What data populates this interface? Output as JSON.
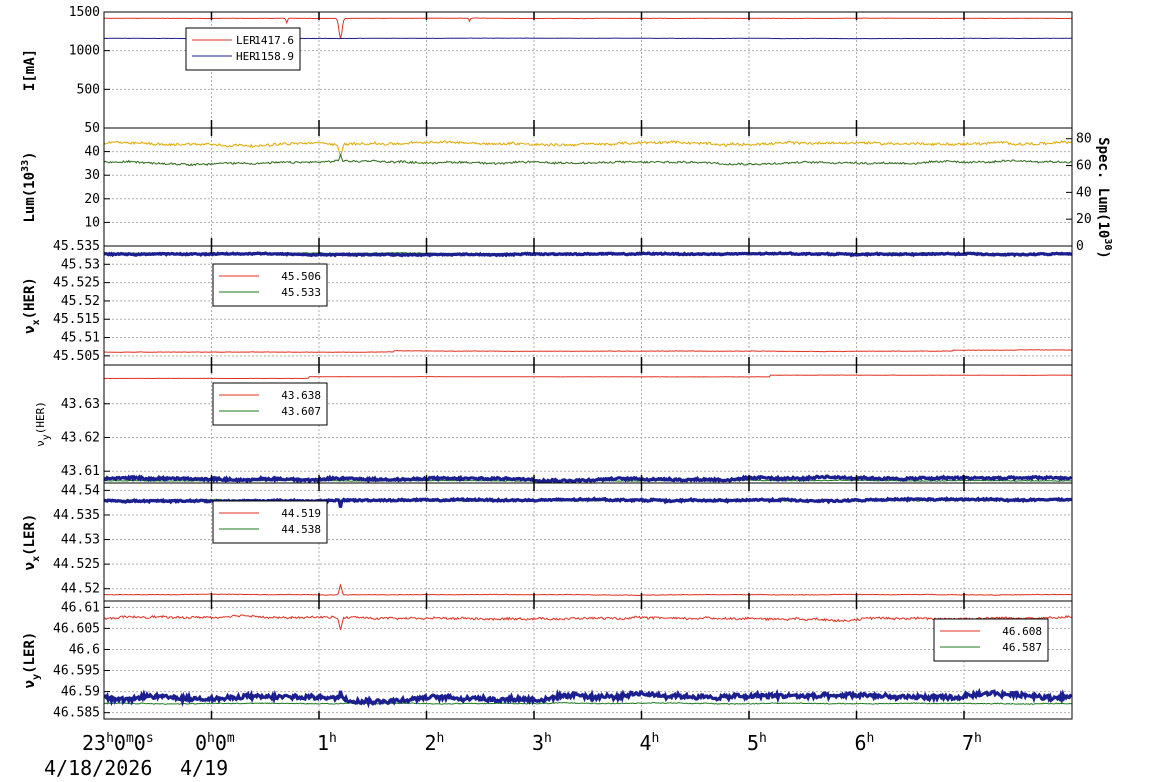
{
  "colors": {
    "red": "#e03020",
    "navy": "#1b1f8f",
    "green": "#1f7a1f",
    "gold": "#e0a800",
    "darkgreen": "#2e6b1a",
    "grid": "#b0b0b0"
  },
  "x_axis": {
    "ticks": [
      {
        "main": "23",
        "parts": [
          {
            "t": "h",
            "sup": true
          },
          {
            "t": "0",
            "sup": false
          },
          {
            "t": "m",
            "sup": true
          },
          {
            "t": "0",
            "sup": false
          },
          {
            "t": "s",
            "sup": true
          }
        ],
        "hour": -1
      },
      {
        "main": "0",
        "parts": [
          {
            "t": "h",
            "sup": true
          },
          {
            "t": "0",
            "sup": false
          },
          {
            "t": "m",
            "sup": true
          }
        ],
        "hour": 0
      },
      {
        "main": "1",
        "parts": [
          {
            "t": "h",
            "sup": true
          }
        ],
        "hour": 1
      },
      {
        "main": "2",
        "parts": [
          {
            "t": "h",
            "sup": true
          }
        ],
        "hour": 2
      },
      {
        "main": "3",
        "parts": [
          {
            "t": "h",
            "sup": true
          }
        ],
        "hour": 3
      },
      {
        "main": "4",
        "parts": [
          {
            "t": "h",
            "sup": true
          }
        ],
        "hour": 4
      },
      {
        "main": "5",
        "parts": [
          {
            "t": "h",
            "sup": true
          }
        ],
        "hour": 5
      },
      {
        "main": "6",
        "parts": [
          {
            "t": "h",
            "sup": true
          }
        ],
        "hour": 6
      },
      {
        "main": "7",
        "parts": [
          {
            "t": "h",
            "sup": true
          }
        ],
        "hour": 7
      }
    ],
    "date_left": "4/18/2026",
    "date_right": "4/19"
  },
  "chart_data": [
    {
      "type": "line",
      "ylabel": "I[mA]",
      "ylim": [
        0,
        1500
      ],
      "yticks": [
        {
          "v": 1500,
          "label": "1500"
        },
        {
          "v": 1000,
          "label": "1000"
        },
        {
          "v": 500,
          "label": "500"
        }
      ],
      "grid": true,
      "legend": {
        "placement": "top-left"
      },
      "series": [
        {
          "name": "LER",
          "value_label": "1417.6",
          "color": "red",
          "base": 1417.6,
          "noise": 3,
          "dips": [
            {
              "at": 1.2,
              "depth": 260,
              "w": 0.02
            },
            {
              "at": 0.7,
              "depth": 60,
              "w": 0.01
            },
            {
              "at": 2.4,
              "depth": 40,
              "w": 0.008
            }
          ]
        },
        {
          "name": "HER",
          "value_label": "1158.9",
          "color": "navy",
          "base": 1158.9,
          "noise": 3,
          "dips": []
        }
      ]
    },
    {
      "type": "line",
      "ylabel": "Lum(10",
      "ylabel_sup": "33",
      "ylabel_end": ")",
      "ylim": [
        0,
        50
      ],
      "yticks": [
        {
          "v": 50,
          "label": "50"
        },
        {
          "v": 40,
          "label": "40"
        },
        {
          "v": 30,
          "label": "30"
        },
        {
          "v": 20,
          "label": "20"
        },
        {
          "v": 10,
          "label": "10"
        }
      ],
      "y2label": "Spec. Lum(10",
      "y2label_sup": "30",
      "y2label_end": ")",
      "y2lim": [
        0,
        88
      ],
      "y2ticks": [
        {
          "v": 80,
          "label": "80"
        },
        {
          "v": 60,
          "label": "60"
        },
        {
          "v": 40,
          "label": "40"
        },
        {
          "v": 20,
          "label": "20"
        },
        {
          "v": 0,
          "label": "0"
        }
      ],
      "grid": true,
      "series": [
        {
          "color": "gold",
          "base": 43.5,
          "noise": 1.0,
          "dips": [
            {
              "at": 1.2,
              "depth": 5,
              "w": 0.02
            }
          ]
        },
        {
          "color": "darkgreen",
          "base": 35.5,
          "noise": 0.8,
          "dips": [
            {
              "at": 1.2,
              "depth": -3,
              "w": 0.01
            }
          ]
        }
      ]
    },
    {
      "type": "line",
      "ylabel": "ν",
      "ylabel_sub": "x",
      "ylabel_end": "(HER)",
      "ylim": [
        45.5025,
        45.535
      ],
      "yticks": [
        {
          "v": 45.535,
          "label": "45.535"
        },
        {
          "v": 45.53,
          "label": "45.53"
        },
        {
          "v": 45.525,
          "label": "45.525"
        },
        {
          "v": 45.52,
          "label": "45.52"
        },
        {
          "v": 45.515,
          "label": "45.515"
        },
        {
          "v": 45.51,
          "label": "45.51"
        },
        {
          "v": 45.505,
          "label": "45.505"
        }
      ],
      "grid": true,
      "legend": {
        "placement": "top-left"
      },
      "series": [
        {
          "value_label": "45.506",
          "color": "red",
          "base": 45.506,
          "noise": 0.0001,
          "steps": [
            {
              "at": 1.7,
              "d": 0.0003
            },
            {
              "at": 6.9,
              "d": 0.0003
            }
          ]
        },
        {
          "value_label": "45.533",
          "color": "green",
          "base": 45.533,
          "noise": 0.0002
        }
      ],
      "extra": [
        {
          "color": "navy",
          "base": 45.5328,
          "noise": 0.0003,
          "thick": true
        }
      ]
    },
    {
      "type": "line",
      "ylabel": "ν",
      "ylabel_sub": "y",
      "ylabel_end": "(HER)",
      "small_label": true,
      "ylim": [
        43.6065,
        43.6415
      ],
      "yticks": [
        {
          "v": 43.63,
          "label": "43.63"
        },
        {
          "v": 43.62,
          "label": "43.62"
        },
        {
          "v": 43.61,
          "label": "43.61"
        }
      ],
      "grid": true,
      "legend": {
        "placement": "top-left"
      },
      "series": [
        {
          "value_label": "43.638",
          "color": "red",
          "base": 43.6375,
          "noise": 5e-05,
          "steps": [
            {
              "at": 0.9,
              "d": 0.0005
            },
            {
              "at": 5.2,
              "d": 0.0005
            }
          ]
        },
        {
          "value_label": "43.607",
          "color": "green",
          "base": 43.6072,
          "noise": 0.0002
        }
      ],
      "extra": [
        {
          "color": "navy",
          "base": 43.6078,
          "noise": 0.0006,
          "thick": true
        }
      ]
    },
    {
      "type": "line",
      "ylabel": "ν",
      "ylabel_sub": "x",
      "ylabel_end": "(LER)",
      "ylim": [
        44.5175,
        44.5415
      ],
      "yticks": [
        {
          "v": 44.54,
          "label": "44.54"
        },
        {
          "v": 44.535,
          "label": "44.535"
        },
        {
          "v": 44.53,
          "label": "44.53"
        },
        {
          "v": 44.525,
          "label": "44.525"
        },
        {
          "v": 44.52,
          "label": "44.52"
        }
      ],
      "grid": true,
      "legend": {
        "placement": "top-left"
      },
      "series": [
        {
          "value_label": "44.519",
          "color": "red",
          "base": 44.5188,
          "noise": 0.0001,
          "dips": [
            {
              "at": 1.2,
              "depth": -0.002,
              "w": 0.015
            }
          ]
        },
        {
          "value_label": "44.538",
          "color": "green",
          "base": 44.538,
          "noise": 0.0002
        }
      ],
      "extra": [
        {
          "color": "navy",
          "base": 44.538,
          "noise": 0.0003,
          "thick": true,
          "dips": [
            {
              "at": 1.2,
              "depth": 0.0015,
              "w": 0.01
            }
          ]
        }
      ]
    },
    {
      "type": "line",
      "ylabel": "ν",
      "ylabel_sub": "y",
      "ylabel_end": "(LER)",
      "ylim": [
        46.5835,
        46.6115
      ],
      "yticks": [
        {
          "v": 46.61,
          "label": "46.61"
        },
        {
          "v": 46.605,
          "label": "46.605"
        },
        {
          "v": 46.6,
          "label": "46.6"
        },
        {
          "v": 46.595,
          "label": "46.595"
        },
        {
          "v": 46.59,
          "label": "46.59"
        },
        {
          "v": 46.585,
          "label": "46.585"
        }
      ],
      "grid": true,
      "legend": {
        "placement": "top-right"
      },
      "series": [
        {
          "value_label": "46.608",
          "color": "red",
          "base": 46.6075,
          "noise": 0.0005,
          "dips": [
            {
              "at": 1.2,
              "depth": 0.003,
              "w": 0.015
            }
          ]
        },
        {
          "value_label": "46.587",
          "color": "green",
          "base": 46.5872,
          "noise": 0.0002
        }
      ],
      "extra": [
        {
          "color": "navy",
          "base": 46.5887,
          "noise": 0.001,
          "thick": true,
          "dips": [
            {
              "at": 1.2,
              "depth": -0.002,
              "w": 0.01
            }
          ]
        }
      ]
    }
  ]
}
